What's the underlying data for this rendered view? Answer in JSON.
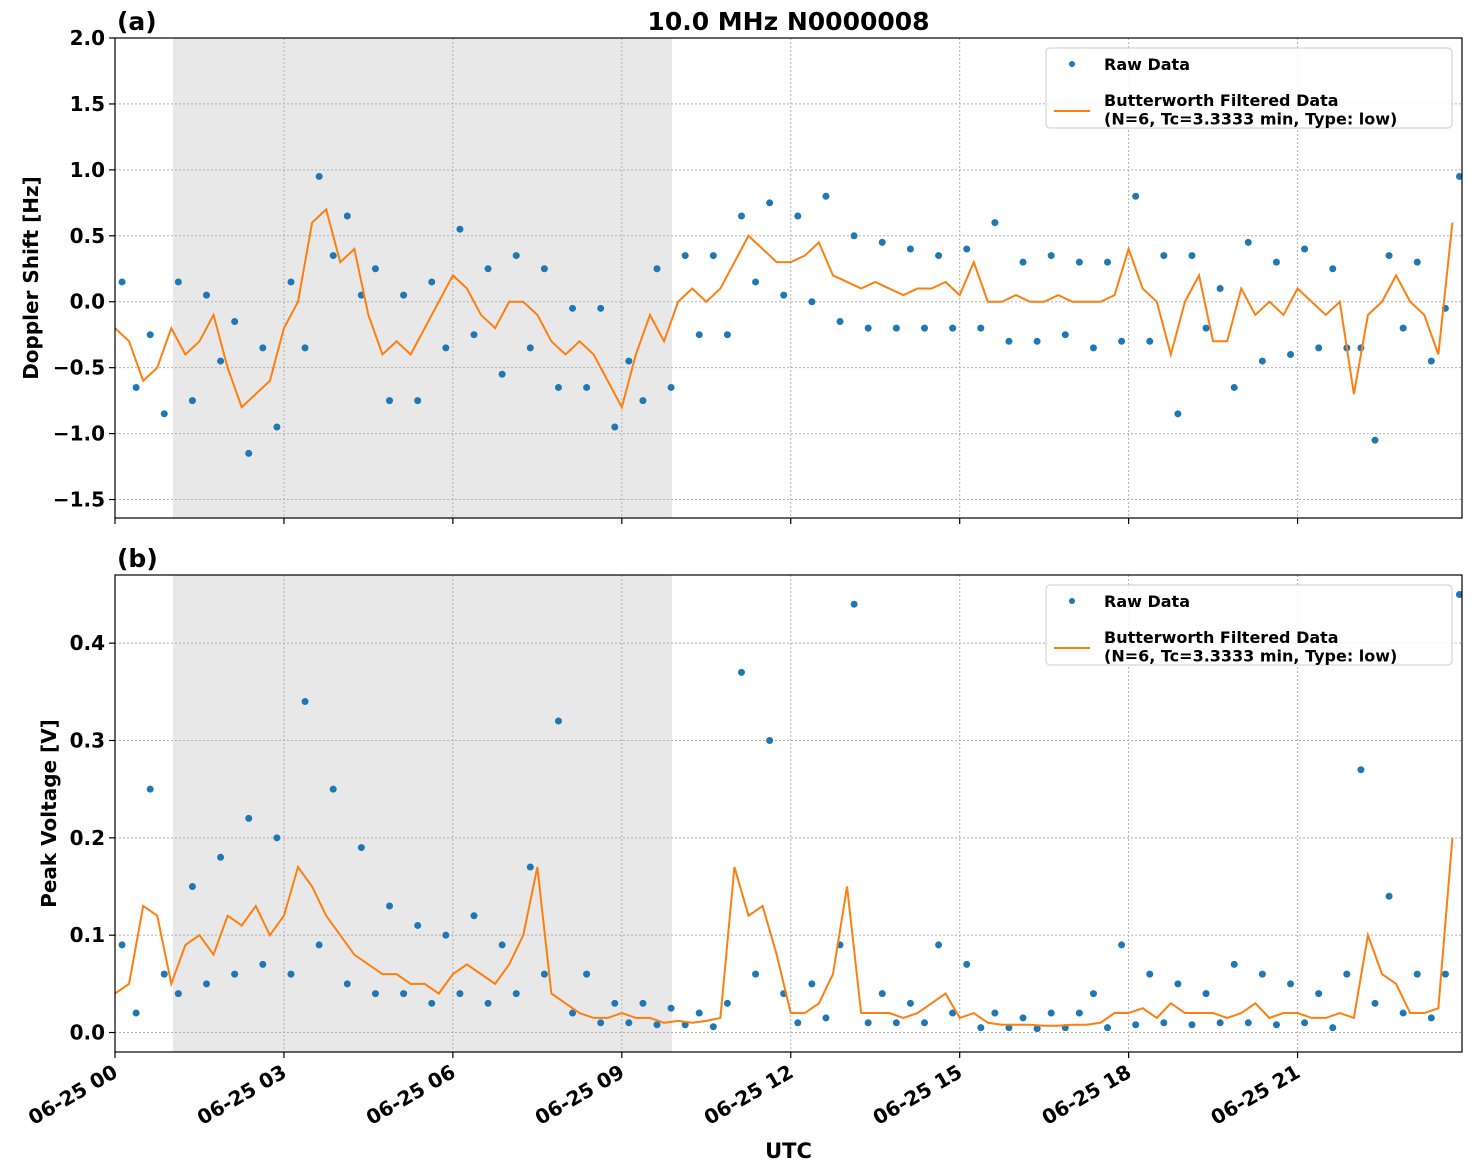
{
  "chart_data": [
    {
      "type": "scatter_line",
      "title": "10.0 MHz N0000008",
      "panel_label": "(a)",
      "ylabel": "Doppler Shift [Hz]",
      "xlim": [
        0,
        23.92
      ],
      "ylim": [
        -1.64,
        2.0
      ],
      "yticks": [
        {
          "value": -1.5,
          "label": "−1.5"
        },
        {
          "value": -1.0,
          "label": "−1.0"
        },
        {
          "value": -0.5,
          "label": "−0.5"
        },
        {
          "value": 0,
          "label": "0.0"
        },
        0.5,
        {
          "value": 1.0,
          "label": "1.0"
        },
        1.5,
        {
          "value": 2.0,
          "label": "2.0"
        }
      ],
      "grid": true,
      "legend": "upper right",
      "shaded_xlim": [
        1.03,
        9.89
      ],
      "series": [
        {
          "name": "Raw Data",
          "color": "#1f77b4",
          "mode": "markers",
          "x": [
            0.125,
            0.375,
            0.625,
            0.875,
            1.125,
            1.375,
            1.625,
            1.875,
            2.125,
            2.375,
            2.625,
            2.875,
            3.125,
            3.375,
            3.625,
            3.875,
            4.125,
            4.375,
            4.625,
            4.875,
            5.125,
            5.375,
            5.625,
            5.875,
            6.125,
            6.375,
            6.625,
            6.875,
            7.125,
            7.375,
            7.625,
            7.875,
            8.125,
            8.375,
            8.625,
            8.875,
            9.125,
            9.375,
            9.625,
            9.875,
            10.125,
            10.375,
            10.625,
            10.875,
            11.125,
            11.375,
            11.625,
            11.875,
            12.125,
            12.375,
            12.625,
            12.875,
            13.125,
            13.375,
            13.625,
            13.875,
            14.125,
            14.375,
            14.625,
            14.875,
            15.125,
            15.375,
            15.625,
            15.875,
            16.125,
            16.375,
            16.625,
            16.875,
            17.125,
            17.375,
            17.625,
            17.875,
            18.125,
            18.375,
            18.625,
            18.875,
            19.125,
            19.375,
            19.625,
            19.875,
            20.125,
            20.375,
            20.625,
            20.875,
            21.125,
            21.375,
            21.625,
            21.875,
            22.125,
            22.375,
            22.625,
            22.875,
            23.125,
            23.375,
            23.625,
            23.875
          ],
          "values": [
            0.15,
            -0.65,
            -0.25,
            -0.85,
            0.15,
            -0.75,
            0.05,
            -0.45,
            -0.15,
            -1.15,
            -0.35,
            -0.95,
            0.15,
            -0.35,
            0.95,
            0.35,
            0.65,
            0.05,
            0.25,
            -0.75,
            0.05,
            -0.75,
            0.15,
            -0.35,
            0.55,
            -0.25,
            0.25,
            -0.55,
            0.35,
            -0.35,
            0.25,
            -0.65,
            -0.05,
            -0.65,
            -0.05,
            -0.95,
            -0.45,
            -0.75,
            0.25,
            -0.65,
            0.35,
            -0.25,
            0.35,
            -0.25,
            0.65,
            0.15,
            0.75,
            0.05,
            0.65,
            0.0,
            0.8,
            -0.15,
            0.5,
            -0.2,
            0.45,
            -0.2,
            0.4,
            -0.2,
            0.35,
            -0.2,
            0.4,
            -0.2,
            0.6,
            -0.3,
            0.3,
            -0.3,
            0.35,
            -0.25,
            0.3,
            -0.35,
            0.3,
            -0.3,
            0.8,
            -0.3,
            0.35,
            -0.85,
            0.35,
            -0.2,
            0.1,
            -0.65,
            0.45,
            -0.45,
            0.3,
            -0.4,
            0.4,
            -0.35,
            0.25,
            -0.35,
            -0.35,
            -1.05,
            0.35,
            -0.2,
            0.3,
            -0.45,
            -0.05,
            0.95
          ]
        },
        {
          "name": "Butterworth Filtered Data\n(N=6, Tc=3.3333 min, Type: low)",
          "color": "#ff7f0e",
          "mode": "line",
          "x": [
            0,
            0.25,
            0.5,
            0.75,
            1,
            1.25,
            1.5,
            1.75,
            2,
            2.25,
            2.5,
            2.75,
            3,
            3.25,
            3.5,
            3.75,
            4,
            4.25,
            4.5,
            4.75,
            5,
            5.25,
            5.5,
            5.75,
            6,
            6.25,
            6.5,
            6.75,
            7,
            7.25,
            7.5,
            7.75,
            8,
            8.25,
            8.5,
            8.75,
            9,
            9.25,
            9.5,
            9.75,
            10,
            10.25,
            10.5,
            10.75,
            11,
            11.25,
            11.5,
            11.75,
            12,
            12.25,
            12.5,
            12.75,
            13,
            13.25,
            13.5,
            13.75,
            14,
            14.25,
            14.5,
            14.75,
            15,
            15.25,
            15.5,
            15.75,
            16,
            16.25,
            16.5,
            16.75,
            17,
            17.25,
            17.5,
            17.75,
            18,
            18.25,
            18.5,
            18.75,
            19,
            19.25,
            19.5,
            19.75,
            20,
            20.25,
            20.5,
            20.75,
            21,
            21.25,
            21.5,
            21.75,
            22,
            22.25,
            22.5,
            22.75,
            23,
            23.25,
            23.5,
            23.75
          ],
          "values": [
            -0.2,
            -0.3,
            -0.6,
            -0.5,
            -0.2,
            -0.4,
            -0.3,
            -0.1,
            -0.5,
            -0.8,
            -0.7,
            -0.6,
            -0.2,
            0.0,
            0.6,
            0.7,
            0.3,
            0.4,
            -0.1,
            -0.4,
            -0.3,
            -0.4,
            -0.2,
            0.0,
            0.2,
            0.1,
            -0.1,
            -0.2,
            0.0,
            0.0,
            -0.1,
            -0.3,
            -0.4,
            -0.3,
            -0.4,
            -0.6,
            -0.8,
            -0.4,
            -0.1,
            -0.3,
            0.0,
            0.1,
            0.0,
            0.1,
            0.3,
            0.5,
            0.4,
            0.3,
            0.3,
            0.35,
            0.45,
            0.2,
            0.15,
            0.1,
            0.15,
            0.1,
            0.05,
            0.1,
            0.1,
            0.15,
            0.05,
            0.3,
            0.0,
            0.0,
            0.05,
            0.0,
            0.0,
            0.05,
            0.0,
            0.0,
            0.0,
            0.05,
            0.4,
            0.1,
            0.0,
            -0.4,
            0.0,
            0.2,
            -0.3,
            -0.3,
            0.1,
            -0.1,
            0.0,
            -0.1,
            0.1,
            0.0,
            -0.1,
            0.0,
            -0.7,
            -0.1,
            0.0,
            0.2,
            0.0,
            -0.1,
            -0.4,
            0.6
          ]
        }
      ]
    },
    {
      "type": "scatter_line",
      "panel_label": "(b)",
      "ylabel": "Peak Voltage [V]",
      "xlabel": "UTC",
      "xlim": [
        0,
        23.92
      ],
      "ylim": [
        -0.02,
        0.47
      ],
      "xticks": [
        {
          "value": 0,
          "label": "06-25 00"
        },
        {
          "value": 3,
          "label": "06-25 03"
        },
        {
          "value": 6,
          "label": "06-25 06"
        },
        {
          "value": 9,
          "label": "06-25 09"
        },
        {
          "value": 12,
          "label": "06-25 12"
        },
        {
          "value": 15,
          "label": "06-25 15"
        },
        {
          "value": 18,
          "label": "06-25 18"
        },
        {
          "value": 21,
          "label": "06-25 21"
        }
      ],
      "yticks": [
        {
          "value": 0,
          "label": "0.0"
        },
        0.1,
        0.2,
        0.3,
        0.4
      ],
      "grid": true,
      "legend": "upper right",
      "shaded_xlim": [
        1.03,
        9.89
      ],
      "series": [
        {
          "name": "Raw Data",
          "color": "#1f77b4",
          "mode": "markers",
          "x": [
            0.125,
            0.375,
            0.625,
            0.875,
            1.125,
            1.375,
            1.625,
            1.875,
            2.125,
            2.375,
            2.625,
            2.875,
            3.125,
            3.375,
            3.625,
            3.875,
            4.125,
            4.375,
            4.625,
            4.875,
            5.125,
            5.375,
            5.625,
            5.875,
            6.125,
            6.375,
            6.625,
            6.875,
            7.125,
            7.375,
            7.625,
            7.875,
            8.125,
            8.375,
            8.625,
            8.875,
            9.125,
            9.375,
            9.625,
            9.875,
            10.125,
            10.375,
            10.625,
            10.875,
            11.125,
            11.375,
            11.625,
            11.875,
            12.125,
            12.375,
            12.625,
            12.875,
            13.125,
            13.375,
            13.625,
            13.875,
            14.125,
            14.375,
            14.625,
            14.875,
            15.125,
            15.375,
            15.625,
            15.875,
            16.125,
            16.375,
            16.625,
            16.875,
            17.125,
            17.375,
            17.625,
            17.875,
            18.125,
            18.375,
            18.625,
            18.875,
            19.125,
            19.375,
            19.625,
            19.875,
            20.125,
            20.375,
            20.625,
            20.875,
            21.125,
            21.375,
            21.625,
            21.875,
            22.125,
            22.375,
            22.625,
            22.875,
            23.125,
            23.375,
            23.625,
            23.875
          ],
          "values": [
            0.09,
            0.02,
            0.25,
            0.06,
            0.04,
            0.15,
            0.05,
            0.18,
            0.06,
            0.22,
            0.07,
            0.2,
            0.06,
            0.34,
            0.09,
            0.25,
            0.05,
            0.19,
            0.04,
            0.13,
            0.04,
            0.11,
            0.03,
            0.1,
            0.04,
            0.12,
            0.03,
            0.09,
            0.04,
            0.17,
            0.06,
            0.32,
            0.02,
            0.06,
            0.01,
            0.03,
            0.01,
            0.03,
            0.008,
            0.025,
            0.008,
            0.02,
            0.006,
            0.03,
            0.37,
            0.06,
            0.3,
            0.04,
            0.01,
            0.05,
            0.015,
            0.09,
            0.44,
            0.01,
            0.04,
            0.01,
            0.03,
            0.01,
            0.09,
            0.02,
            0.07,
            0.005,
            0.02,
            0.005,
            0.015,
            0.004,
            0.02,
            0.005,
            0.02,
            0.04,
            0.005,
            0.09,
            0.008,
            0.06,
            0.01,
            0.05,
            0.008,
            0.04,
            0.01,
            0.07,
            0.01,
            0.06,
            0.008,
            0.05,
            0.01,
            0.04,
            0.005,
            0.06,
            0.27,
            0.03,
            0.14,
            0.02,
            0.06,
            0.015,
            0.06,
            0.45
          ]
        },
        {
          "name": "Butterworth Filtered Data\n(N=6, Tc=3.3333 min, Type: low)",
          "color": "#ff7f0e",
          "mode": "line",
          "x": [
            0,
            0.25,
            0.5,
            0.75,
            1,
            1.25,
            1.5,
            1.75,
            2,
            2.25,
            2.5,
            2.75,
            3,
            3.25,
            3.5,
            3.75,
            4,
            4.25,
            4.5,
            4.75,
            5,
            5.25,
            5.5,
            5.75,
            6,
            6.25,
            6.5,
            6.75,
            7,
            7.25,
            7.5,
            7.75,
            8,
            8.25,
            8.5,
            8.75,
            9,
            9.25,
            9.5,
            9.75,
            10,
            10.25,
            10.5,
            10.75,
            11,
            11.25,
            11.5,
            11.75,
            12,
            12.25,
            12.5,
            12.75,
            13,
            13.25,
            13.5,
            13.75,
            14,
            14.25,
            14.5,
            14.75,
            15,
            15.25,
            15.5,
            15.75,
            16,
            16.25,
            16.5,
            16.75,
            17,
            17.25,
            17.5,
            17.75,
            18,
            18.25,
            18.5,
            18.75,
            19,
            19.25,
            19.5,
            19.75,
            20,
            20.25,
            20.5,
            20.75,
            21,
            21.25,
            21.5,
            21.75,
            22,
            22.25,
            22.5,
            22.75,
            23,
            23.25,
            23.5,
            23.75
          ],
          "values": [
            0.04,
            0.05,
            0.13,
            0.12,
            0.05,
            0.09,
            0.1,
            0.08,
            0.12,
            0.11,
            0.13,
            0.1,
            0.12,
            0.17,
            0.15,
            0.12,
            0.1,
            0.08,
            0.07,
            0.06,
            0.06,
            0.05,
            0.05,
            0.04,
            0.06,
            0.07,
            0.06,
            0.05,
            0.07,
            0.1,
            0.17,
            0.04,
            0.03,
            0.02,
            0.015,
            0.015,
            0.02,
            0.015,
            0.015,
            0.01,
            0.012,
            0.01,
            0.012,
            0.015,
            0.17,
            0.12,
            0.13,
            0.08,
            0.02,
            0.02,
            0.03,
            0.06,
            0.15,
            0.02,
            0.02,
            0.02,
            0.015,
            0.02,
            0.03,
            0.04,
            0.015,
            0.02,
            0.01,
            0.008,
            0.008,
            0.008,
            0.007,
            0.007,
            0.008,
            0.008,
            0.01,
            0.02,
            0.02,
            0.025,
            0.015,
            0.03,
            0.02,
            0.02,
            0.02,
            0.015,
            0.02,
            0.03,
            0.015,
            0.02,
            0.02,
            0.015,
            0.015,
            0.02,
            0.015,
            0.1,
            0.06,
            0.05,
            0.02,
            0.02,
            0.025,
            0.2
          ]
        }
      ]
    }
  ]
}
